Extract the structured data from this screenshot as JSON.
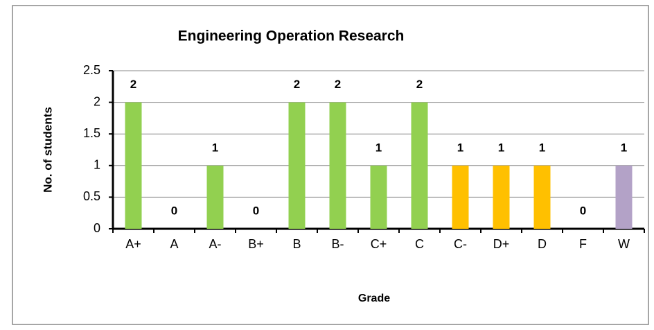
{
  "chart_data": {
    "type": "bar",
    "title": "Engineering Operation Research",
    "x_label": "Grade",
    "y_label": "No. of students",
    "categories": [
      "A+",
      "A",
      "A-",
      "B+",
      "B",
      "B-",
      "C+",
      "C",
      "C-",
      "D+",
      "D",
      "F",
      "W"
    ],
    "values": [
      2,
      0,
      1,
      0,
      2,
      2,
      1,
      2,
      1,
      1,
      1,
      0,
      1
    ],
    "colors": [
      "#92d050",
      "#92d050",
      "#92d050",
      "#92d050",
      "#92d050",
      "#92d050",
      "#92d050",
      "#92d050",
      "#ffc000",
      "#ffc000",
      "#ffc000",
      "#ffc000",
      "#b3a2c7"
    ],
    "ylim": [
      0,
      2.5
    ],
    "yticks": [
      0,
      0.5,
      1,
      1.5,
      2,
      2.5
    ],
    "grid": true
  }
}
